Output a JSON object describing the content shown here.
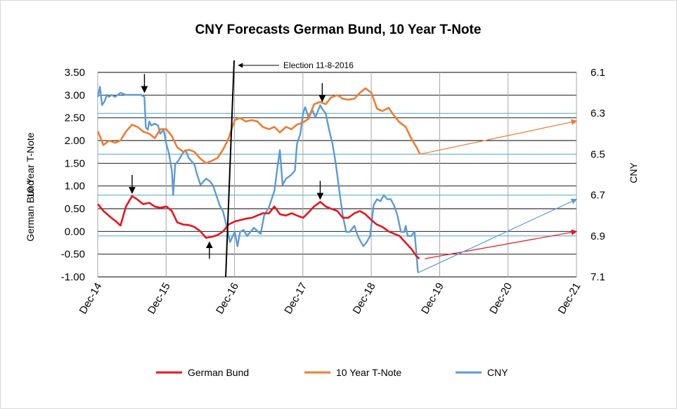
{
  "chart_data": {
    "type": "line",
    "title": "CNY Forecasts German Bund, 10 Year T-Note",
    "ylabel_left_line1": "10 Year T-Note",
    "ylabel_left_line2": "German Bund",
    "ylabel_right": "CNY",
    "y_left": {
      "min": -1.0,
      "max": 3.5,
      "ticks": [
        "3.50",
        "3.00",
        "2.50",
        "2.00",
        "1.50",
        "1.00",
        "0.50",
        "0.00",
        "-0.50",
        "-1.00"
      ]
    },
    "y_right": {
      "min": 6.1,
      "max": 7.1,
      "inverted": true,
      "ticks": [
        "6.1",
        "6.3",
        "6.5",
        "6.7",
        "6.9",
        "7.1"
      ]
    },
    "x": {
      "min": 2014.917,
      "max": 2021.917,
      "ticks": [
        "Dec-14",
        "Dec-15",
        "Dec-16",
        "Dec-17",
        "Dec-18",
        "Dec-19",
        "Dec-20",
        "Dec-21"
      ]
    },
    "cny_reference_levels": [
      6.3,
      6.5,
      6.7,
      6.9
    ],
    "grid": "vertical and horizontal",
    "legend_position": "bottom",
    "series": [
      {
        "name": "German Bund",
        "axis": "left",
        "color": "#e8141c",
        "points": [
          [
            2014.92,
            0.6
          ],
          [
            2015.0,
            0.45
          ],
          [
            2015.1,
            0.32
          ],
          [
            2015.2,
            0.2
          ],
          [
            2015.25,
            0.13
          ],
          [
            2015.33,
            0.55
          ],
          [
            2015.42,
            0.78
          ],
          [
            2015.5,
            0.7
          ],
          [
            2015.58,
            0.6
          ],
          [
            2015.67,
            0.63
          ],
          [
            2015.75,
            0.55
          ],
          [
            2015.83,
            0.52
          ],
          [
            2015.92,
            0.55
          ],
          [
            2016.0,
            0.45
          ],
          [
            2016.08,
            0.2
          ],
          [
            2016.17,
            0.15
          ],
          [
            2016.25,
            0.14
          ],
          [
            2016.33,
            0.1
          ],
          [
            2016.42,
            0.0
          ],
          [
            2016.5,
            -0.14
          ],
          [
            2016.58,
            -0.12
          ],
          [
            2016.67,
            -0.08
          ],
          [
            2016.75,
            0.0
          ],
          [
            2016.83,
            0.15
          ],
          [
            2016.92,
            0.22
          ],
          [
            2017.0,
            0.25
          ],
          [
            2017.08,
            0.28
          ],
          [
            2017.17,
            0.3
          ],
          [
            2017.25,
            0.35
          ],
          [
            2017.33,
            0.4
          ],
          [
            2017.42,
            0.4
          ],
          [
            2017.5,
            0.55
          ],
          [
            2017.58,
            0.38
          ],
          [
            2017.67,
            0.35
          ],
          [
            2017.75,
            0.4
          ],
          [
            2017.83,
            0.35
          ],
          [
            2017.92,
            0.3
          ],
          [
            2018.0,
            0.42
          ],
          [
            2018.08,
            0.55
          ],
          [
            2018.17,
            0.65
          ],
          [
            2018.25,
            0.55
          ],
          [
            2018.33,
            0.5
          ],
          [
            2018.42,
            0.45
          ],
          [
            2018.5,
            0.3
          ],
          [
            2018.58,
            0.3
          ],
          [
            2018.67,
            0.4
          ],
          [
            2018.75,
            0.45
          ],
          [
            2018.83,
            0.38
          ],
          [
            2018.92,
            0.25
          ],
          [
            2019.0,
            0.15
          ],
          [
            2019.08,
            0.1
          ],
          [
            2019.17,
            0.0
          ],
          [
            2019.25,
            -0.05
          ],
          [
            2019.33,
            -0.1
          ],
          [
            2019.42,
            -0.25
          ],
          [
            2019.5,
            -0.38
          ],
          [
            2019.58,
            -0.55
          ],
          [
            2019.62,
            -0.6
          ]
        ]
      },
      {
        "name": "10 Year T-Note",
        "axis": "left",
        "color": "#ed7d31",
        "points": [
          [
            2014.92,
            2.2
          ],
          [
            2015.0,
            1.9
          ],
          [
            2015.08,
            2.0
          ],
          [
            2015.17,
            1.95
          ],
          [
            2015.25,
            2.0
          ],
          [
            2015.33,
            2.2
          ],
          [
            2015.42,
            2.35
          ],
          [
            2015.5,
            2.3
          ],
          [
            2015.58,
            2.2
          ],
          [
            2015.67,
            2.15
          ],
          [
            2015.75,
            2.05
          ],
          [
            2015.83,
            2.25
          ],
          [
            2015.92,
            2.25
          ],
          [
            2016.0,
            2.1
          ],
          [
            2016.08,
            1.85
          ],
          [
            2016.17,
            1.75
          ],
          [
            2016.25,
            1.8
          ],
          [
            2016.33,
            1.75
          ],
          [
            2016.42,
            1.6
          ],
          [
            2016.5,
            1.5
          ],
          [
            2016.58,
            1.55
          ],
          [
            2016.67,
            1.62
          ],
          [
            2016.75,
            1.8
          ],
          [
            2016.83,
            2.05
          ],
          [
            2016.92,
            2.45
          ],
          [
            2017.0,
            2.5
          ],
          [
            2017.08,
            2.42
          ],
          [
            2017.17,
            2.45
          ],
          [
            2017.25,
            2.42
          ],
          [
            2017.33,
            2.3
          ],
          [
            2017.42,
            2.25
          ],
          [
            2017.5,
            2.3
          ],
          [
            2017.58,
            2.18
          ],
          [
            2017.67,
            2.3
          ],
          [
            2017.75,
            2.25
          ],
          [
            2017.83,
            2.35
          ],
          [
            2017.92,
            2.4
          ],
          [
            2018.0,
            2.48
          ],
          [
            2018.08,
            2.8
          ],
          [
            2018.17,
            2.85
          ],
          [
            2018.25,
            2.8
          ],
          [
            2018.33,
            2.95
          ],
          [
            2018.42,
            3.0
          ],
          [
            2018.5,
            2.92
          ],
          [
            2018.58,
            2.9
          ],
          [
            2018.67,
            2.92
          ],
          [
            2018.75,
            3.05
          ],
          [
            2018.83,
            3.15
          ],
          [
            2018.92,
            3.05
          ],
          [
            2019.0,
            2.7
          ],
          [
            2019.08,
            2.65
          ],
          [
            2019.17,
            2.72
          ],
          [
            2019.25,
            2.55
          ],
          [
            2019.33,
            2.4
          ],
          [
            2019.42,
            2.3
          ],
          [
            2019.5,
            2.05
          ],
          [
            2019.58,
            1.85
          ],
          [
            2019.63,
            1.7
          ]
        ]
      },
      {
        "name": "CNY",
        "axis": "right",
        "color": "#5b9bd5",
        "points": [
          [
            2014.92,
            6.22
          ],
          [
            2014.95,
            6.17
          ],
          [
            2014.98,
            6.26
          ],
          [
            2015.02,
            6.24
          ],
          [
            2015.05,
            6.21
          ],
          [
            2015.08,
            6.22
          ],
          [
            2015.12,
            6.21
          ],
          [
            2015.17,
            6.22
          ],
          [
            2015.25,
            6.2
          ],
          [
            2015.33,
            6.21
          ],
          [
            2015.42,
            6.21
          ],
          [
            2015.55,
            6.21
          ],
          [
            2015.6,
            6.22
          ],
          [
            2015.62,
            6.37
          ],
          [
            2015.65,
            6.38
          ],
          [
            2015.67,
            6.34
          ],
          [
            2015.7,
            6.36
          ],
          [
            2015.75,
            6.35
          ],
          [
            2015.8,
            6.36
          ],
          [
            2015.83,
            6.4
          ],
          [
            2015.88,
            6.38
          ],
          [
            2015.92,
            6.45
          ],
          [
            2015.96,
            6.5
          ],
          [
            2016.0,
            6.58
          ],
          [
            2016.02,
            6.7
          ],
          [
            2016.05,
            6.55
          ],
          [
            2016.1,
            6.53
          ],
          [
            2016.15,
            6.5
          ],
          [
            2016.2,
            6.48
          ],
          [
            2016.25,
            6.52
          ],
          [
            2016.33,
            6.55
          ],
          [
            2016.37,
            6.6
          ],
          [
            2016.42,
            6.65
          ],
          [
            2016.5,
            6.62
          ],
          [
            2016.55,
            6.63
          ],
          [
            2016.6,
            6.65
          ],
          [
            2016.65,
            6.7
          ],
          [
            2016.7,
            6.75
          ],
          [
            2016.75,
            6.78
          ],
          [
            2016.8,
            6.85
          ],
          [
            2016.85,
            6.93
          ],
          [
            2016.92,
            6.88
          ],
          [
            2016.96,
            6.95
          ],
          [
            2017.0,
            6.88
          ],
          [
            2017.05,
            6.87
          ],
          [
            2017.1,
            6.9
          ],
          [
            2017.2,
            6.86
          ],
          [
            2017.3,
            6.89
          ],
          [
            2017.35,
            6.8
          ],
          [
            2017.42,
            6.76
          ],
          [
            2017.5,
            6.68
          ],
          [
            2017.55,
            6.55
          ],
          [
            2017.58,
            6.48
          ],
          [
            2017.62,
            6.65
          ],
          [
            2017.67,
            6.62
          ],
          [
            2017.75,
            6.6
          ],
          [
            2017.8,
            6.58
          ],
          [
            2017.83,
            6.45
          ],
          [
            2017.88,
            6.4
          ],
          [
            2017.92,
            6.3
          ],
          [
            2017.95,
            6.27
          ],
          [
            2018.0,
            6.32
          ],
          [
            2018.05,
            6.28
          ],
          [
            2018.1,
            6.32
          ],
          [
            2018.17,
            6.26
          ],
          [
            2018.2,
            6.28
          ],
          [
            2018.25,
            6.3
          ],
          [
            2018.3,
            6.38
          ],
          [
            2018.35,
            6.45
          ],
          [
            2018.4,
            6.55
          ],
          [
            2018.45,
            6.68
          ],
          [
            2018.5,
            6.8
          ],
          [
            2018.55,
            6.88
          ],
          [
            2018.6,
            6.88
          ],
          [
            2018.67,
            6.85
          ],
          [
            2018.72,
            6.9
          ],
          [
            2018.75,
            6.92
          ],
          [
            2018.8,
            6.95
          ],
          [
            2018.85,
            6.93
          ],
          [
            2018.9,
            6.9
          ],
          [
            2018.95,
            6.75
          ],
          [
            2019.0,
            6.72
          ],
          [
            2019.05,
            6.73
          ],
          [
            2019.1,
            6.7
          ],
          [
            2019.15,
            6.72
          ],
          [
            2019.2,
            6.72
          ],
          [
            2019.25,
            6.75
          ],
          [
            2019.3,
            6.8
          ],
          [
            2019.35,
            6.88
          ],
          [
            2019.4,
            6.88
          ],
          [
            2019.42,
            6.85
          ],
          [
            2019.45,
            6.9
          ],
          [
            2019.5,
            6.9
          ],
          [
            2019.55,
            6.88
          ],
          [
            2019.58,
            7.0
          ],
          [
            2019.6,
            7.08
          ]
        ]
      }
    ],
    "forecast_arrows": [
      {
        "series": "10 Year T-Note",
        "axis": "left",
        "from": [
          2019.63,
          1.7
        ],
        "to": [
          2021.92,
          2.43
        ]
      },
      {
        "series": "German Bund",
        "axis": "left",
        "from": [
          2019.7,
          -0.6
        ],
        "to": [
          2021.92,
          0.0
        ]
      },
      {
        "series": "CNY",
        "axis": "right",
        "from": [
          2019.6,
          7.08
        ],
        "to": [
          2021.92,
          6.72
        ]
      }
    ],
    "event_annotation": {
      "label": "Election 11-8-2016",
      "x": 2016.85
    },
    "turning_point_markers": [
      {
        "axis": "left",
        "x": 2015.6,
        "y": 3.0,
        "direction": "down"
      },
      {
        "axis": "left",
        "x": 2015.42,
        "y": 0.78,
        "direction": "down"
      },
      {
        "axis": "left",
        "x": 2016.55,
        "y": -0.14,
        "direction": "up"
      },
      {
        "axis": "left",
        "x": 2018.17,
        "y": 0.65,
        "direction": "down"
      },
      {
        "axis": "left",
        "x": 2018.2,
        "y": 2.8,
        "direction": "down"
      }
    ]
  }
}
